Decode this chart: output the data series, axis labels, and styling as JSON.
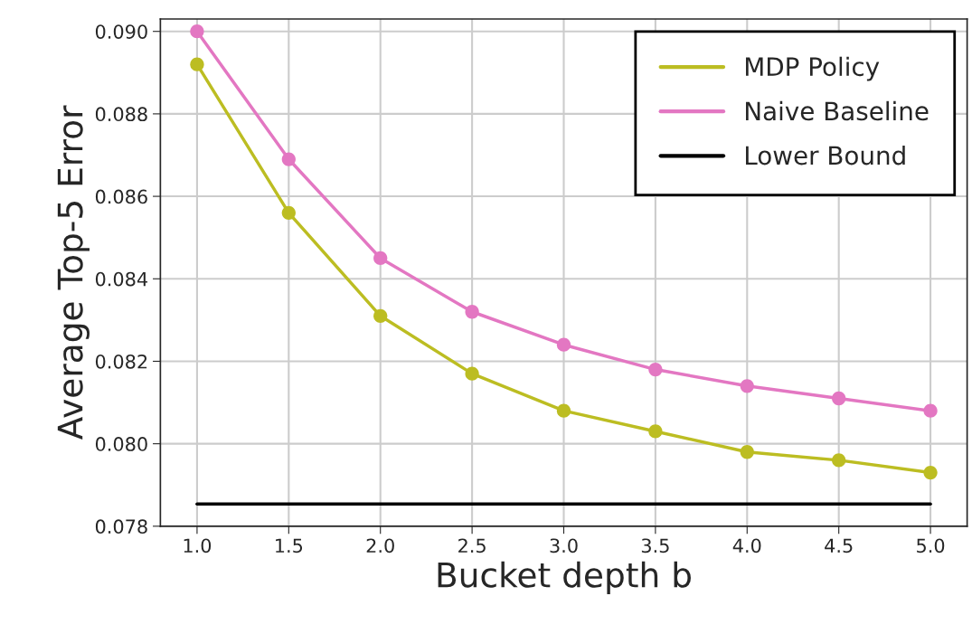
{
  "chart_data": {
    "type": "line",
    "xlabel": "Bucket depth b",
    "ylabel": "Average Top-5 Error",
    "x": [
      1.0,
      1.5,
      2.0,
      2.5,
      3.0,
      3.5,
      4.0,
      4.5,
      5.0
    ],
    "series": [
      {
        "name": "MDP Policy",
        "color": "#bcbd22",
        "values": [
          0.0892,
          0.0856,
          0.0831,
          0.0817,
          0.0808,
          0.0803,
          0.0798,
          0.0796,
          0.0793
        ],
        "marker": "circle"
      },
      {
        "name": "Naive Baseline",
        "color": "#e377c2",
        "values": [
          0.09,
          0.0869,
          0.0845,
          0.0832,
          0.0824,
          0.0818,
          0.0814,
          0.0811,
          0.0808
        ],
        "marker": "circle"
      },
      {
        "name": "Lower Bound",
        "color": "#000000",
        "x": [
          1.0,
          5.0
        ],
        "values": [
          0.07854,
          0.07854
        ],
        "marker": "none"
      }
    ],
    "xlim": [
      0.8,
      5.2
    ],
    "ylim": [
      0.078,
      0.0903
    ],
    "xticks": [
      {
        "value": 1.0,
        "label": "1.0"
      },
      {
        "value": 1.5,
        "label": "1.5"
      },
      {
        "value": 2.0,
        "label": "2.0"
      },
      {
        "value": 2.5,
        "label": "2.5"
      },
      {
        "value": 3.0,
        "label": "3.0"
      },
      {
        "value": 3.5,
        "label": "3.5"
      },
      {
        "value": 4.0,
        "label": "4.0"
      },
      {
        "value": 4.5,
        "label": "4.5"
      },
      {
        "value": 5.0,
        "label": "5.0"
      }
    ],
    "yticks": [
      {
        "value": 0.078,
        "label": "0.078"
      },
      {
        "value": 0.08,
        "label": "0.080"
      },
      {
        "value": 0.082,
        "label": "0.082"
      },
      {
        "value": 0.084,
        "label": "0.084"
      },
      {
        "value": 0.086,
        "label": "0.086"
      },
      {
        "value": 0.088,
        "label": "0.088"
      },
      {
        "value": 0.09,
        "label": "0.090"
      }
    ],
    "grid": true,
    "legend": "top right"
  }
}
